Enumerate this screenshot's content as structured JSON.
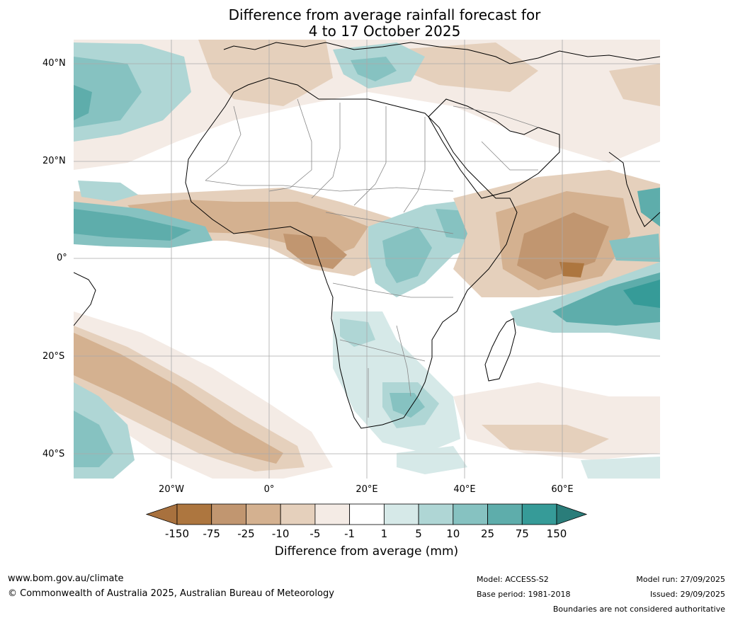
{
  "title": {
    "line1": "Difference from average rainfall forecast for",
    "line2": "4 to 17 October 2025"
  },
  "map": {
    "region": "Africa",
    "lat_labels": [
      "40°N",
      "20°N",
      "0°",
      "20°S",
      "40°S"
    ],
    "lon_labels": [
      "20°W",
      "0°",
      "20°E",
      "40°E",
      "60°E"
    ]
  },
  "colorbar": {
    "ticks": [
      "-150",
      "-75",
      "-25",
      "-10",
      "-5",
      "-1",
      "1",
      "5",
      "10",
      "25",
      "75",
      "150"
    ],
    "colors": [
      "#a8713e",
      "#ad763f",
      "#c19670",
      "#d4b190",
      "#e5d0bc",
      "#f4ebe5",
      "#ffffff",
      "#d6e9e8",
      "#afd6d5",
      "#86c2c1",
      "#5eadab",
      "#369b98",
      "#2a7d7a"
    ],
    "label": "Difference from average (mm)"
  },
  "footer": {
    "website": "www.bom.gov.au/climate",
    "copyright": "© Commonwealth of Australia 2025, Australian Bureau of Meteorology",
    "model": "Model: ACCESS-S2",
    "base_period": "Base period: 1981-2018",
    "model_run": "Model run: 27/09/2025",
    "issued": "Issued: 29/09/2025",
    "disclaimer": "Boundaries are not considered authoritative"
  }
}
